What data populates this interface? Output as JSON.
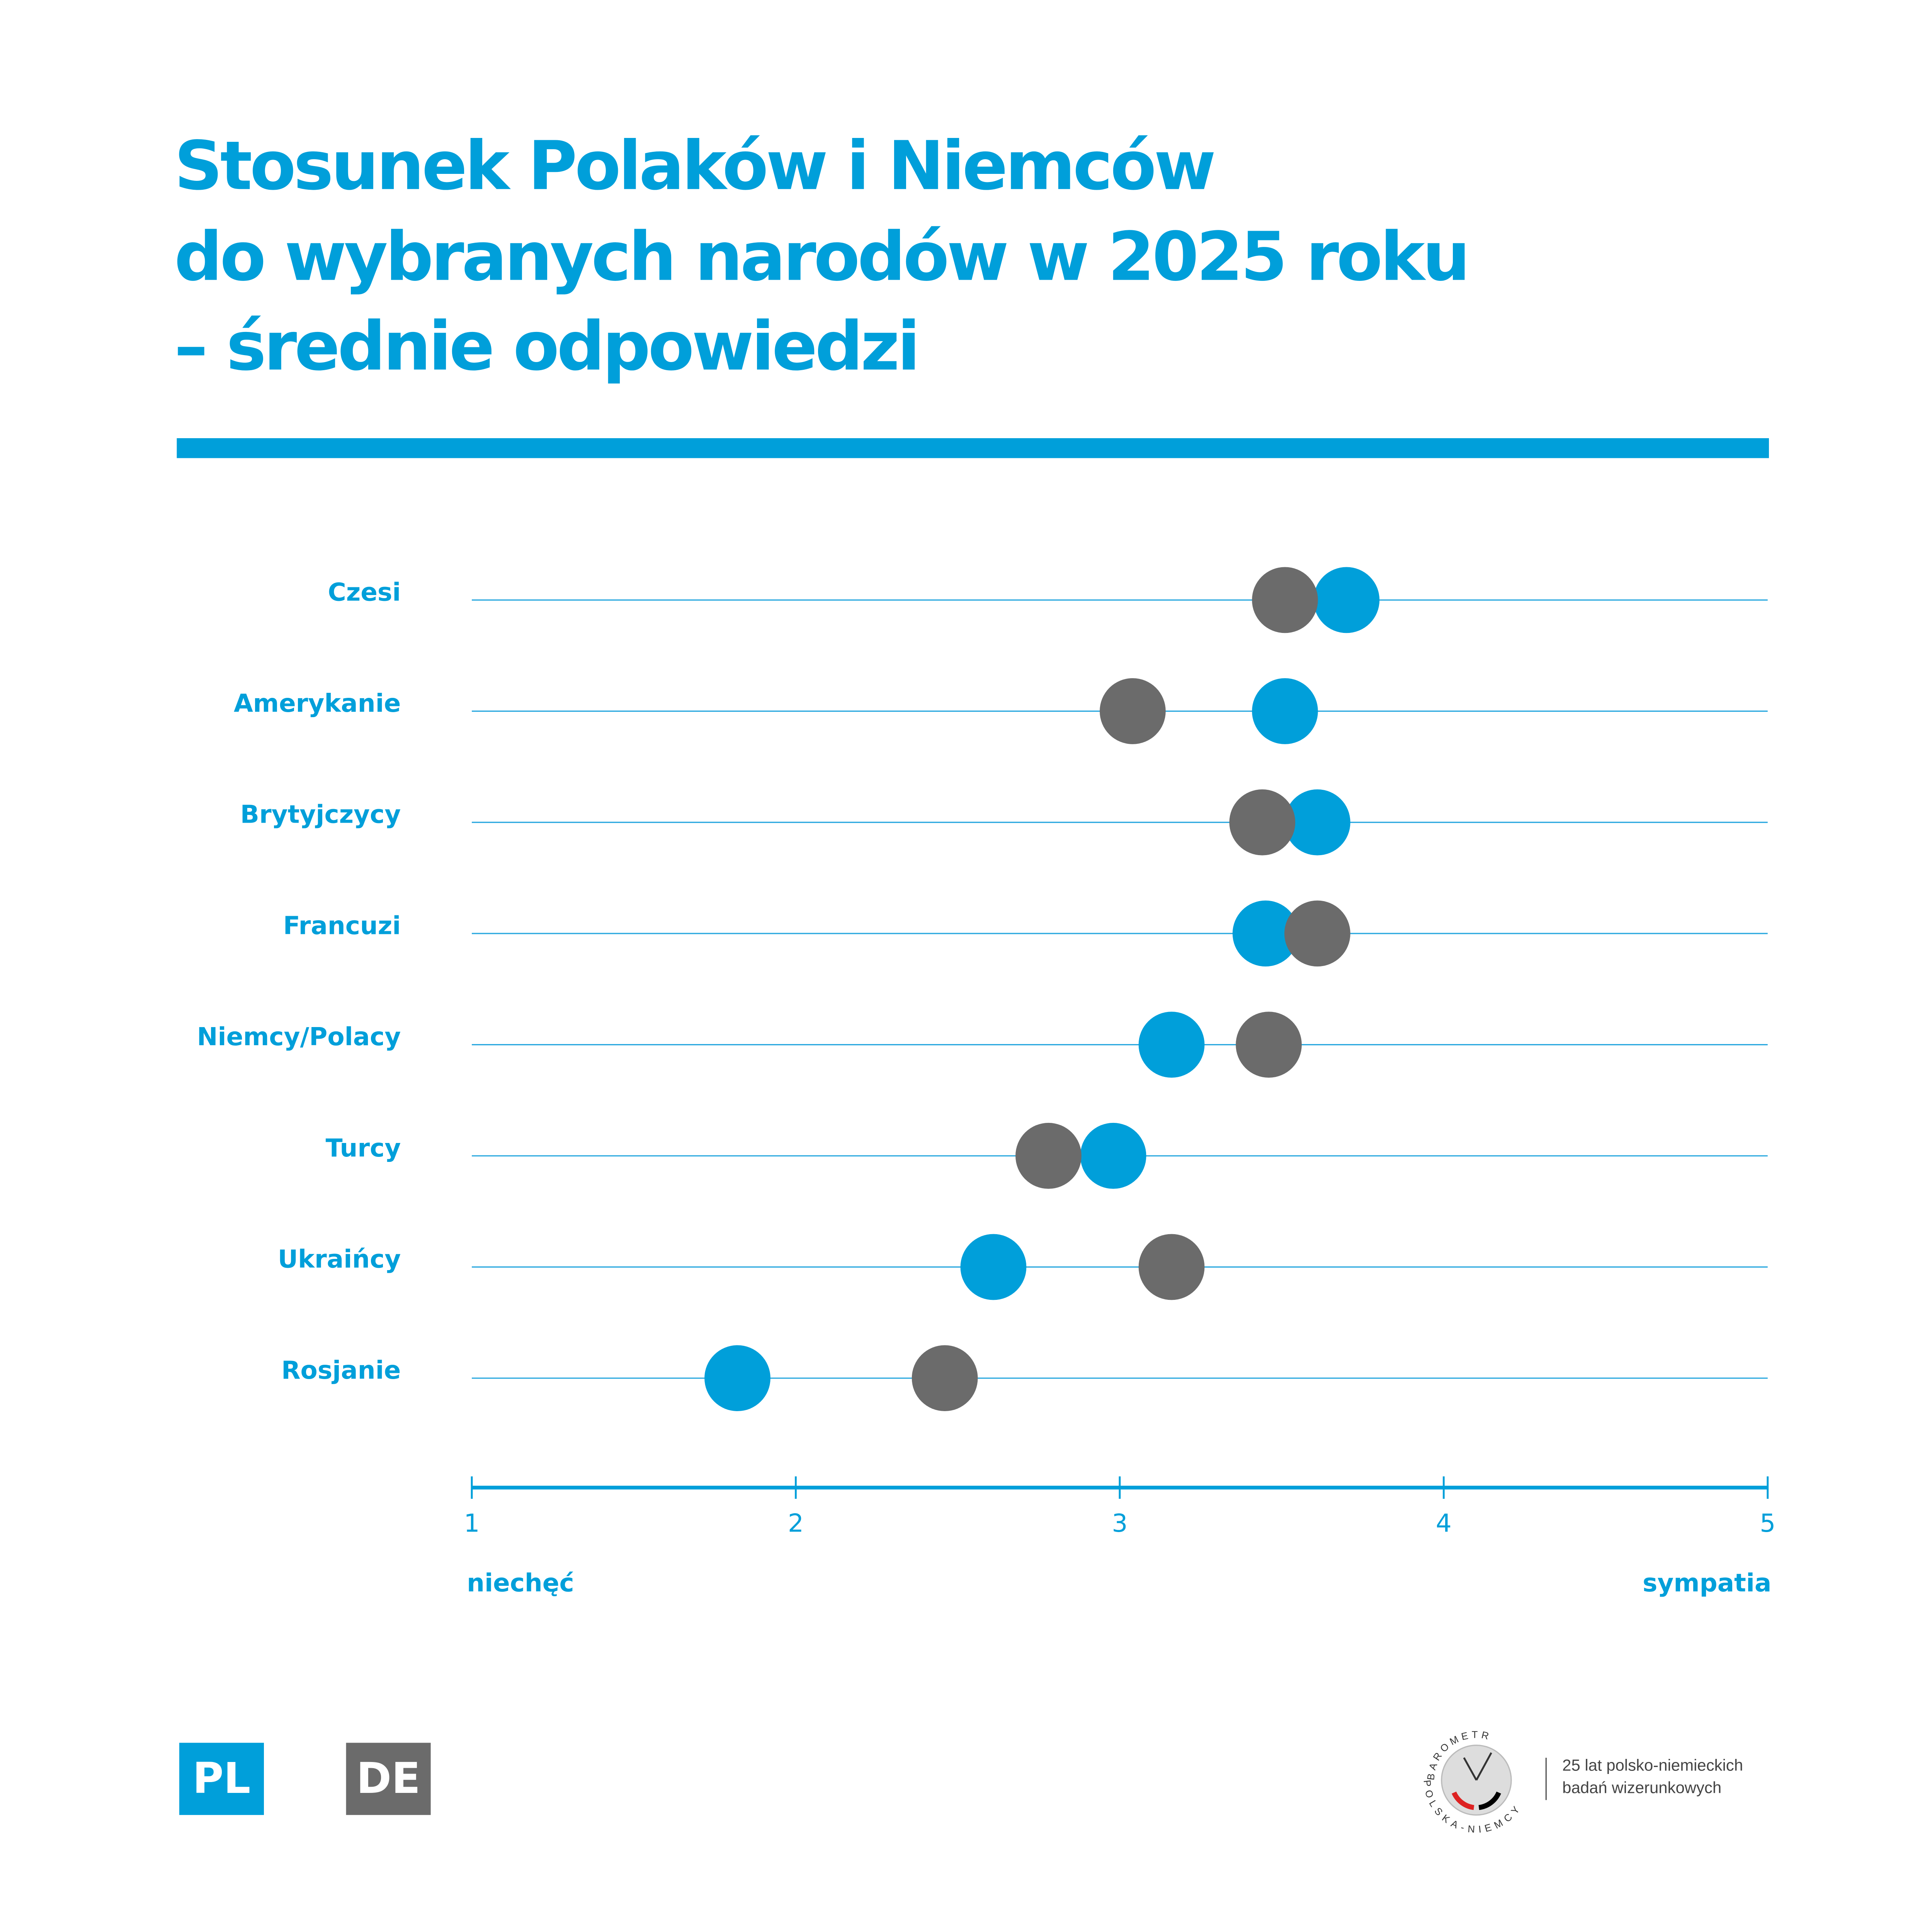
{
  "chart_data": {
    "type": "dot",
    "title": [
      "Stosunek Polaków i Niemców",
      "do wybranych narodów w 2025 roku",
      "– średnie odpowiedzi"
    ],
    "categories": [
      "Czesi",
      "Amerykanie",
      "Brytyjczycy",
      "Francuzi",
      "Niemcy/Polacy",
      "Turcy",
      "Ukraińcy",
      "Rosjanie"
    ],
    "series": [
      {
        "name": "PL",
        "color": "#009fda",
        "values": [
          3.7,
          3.51,
          3.61,
          3.45,
          3.16,
          2.98,
          2.61,
          1.82
        ]
      },
      {
        "name": "DE",
        "color": "#6b6b6b",
        "values": [
          3.51,
          3.04,
          3.44,
          3.61,
          3.46,
          2.78,
          3.16,
          2.46
        ]
      }
    ],
    "xlim": [
      1,
      5
    ],
    "xticks": [
      1,
      2,
      3,
      4,
      5
    ],
    "x_min_label": "niechęć",
    "x_max_label": "sympatia",
    "footer": {
      "logo_top": "BAROMETR",
      "logo_bottom": "POLSKA-NIEMCY",
      "caption": [
        "25 lat polsko-niemieckich",
        "badań wizerunkowych"
      ]
    }
  }
}
